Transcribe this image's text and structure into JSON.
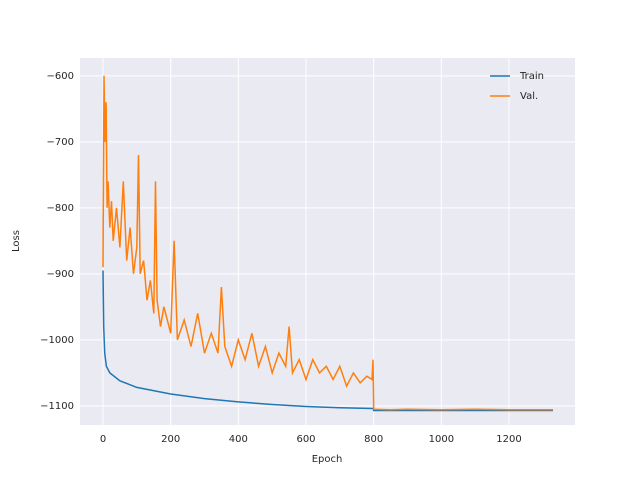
{
  "chart_data": {
    "type": "line",
    "x_label": "Epoch",
    "y_label": "Loss",
    "xlim": [
      -68,
      1395
    ],
    "ylim": [
      -1129,
      -573
    ],
    "xticks": [
      0,
      200,
      400,
      600,
      800,
      1000,
      1200
    ],
    "yticks": [
      {
        "value": -1100,
        "label": "−1100"
      },
      {
        "value": -1000,
        "label": "−1000"
      },
      {
        "value": -900,
        "label": "−900"
      },
      {
        "value": -800,
        "label": "−800"
      },
      {
        "value": -700,
        "label": "−700"
      },
      {
        "value": -600,
        "label": "−600"
      }
    ],
    "grid": true,
    "legend": "upper right",
    "series": [
      {
        "name": "Train",
        "color": "#1f77b4",
        "x": [
          0,
          2,
          5,
          10,
          20,
          50,
          100,
          200,
          300,
          400,
          500,
          600,
          700,
          799,
          800,
          900,
          1000,
          1100,
          1200,
          1330
        ],
        "values": [
          -895,
          -980,
          -1020,
          -1040,
          -1050,
          -1062,
          -1072,
          -1082,
          -1089,
          -1094,
          -1098,
          -1101,
          -1103,
          -1104,
          -1107,
          -1107,
          -1107,
          -1107,
          -1107,
          -1107
        ]
      },
      {
        "name": "Val.",
        "color": "#ff7f0e",
        "x": [
          0,
          3,
          6,
          9,
          12,
          15,
          20,
          25,
          30,
          40,
          50,
          60,
          70,
          80,
          90,
          100,
          105,
          110,
          120,
          130,
          140,
          150,
          155,
          160,
          170,
          180,
          200,
          210,
          220,
          240,
          260,
          280,
          300,
          320,
          340,
          350,
          360,
          380,
          400,
          420,
          440,
          460,
          480,
          500,
          520,
          540,
          550,
          560,
          580,
          600,
          620,
          640,
          660,
          680,
          700,
          720,
          740,
          760,
          780,
          795,
          798,
          800,
          850,
          900,
          1000,
          1100,
          1200,
          1330
        ],
        "values": [
          -890,
          -600,
          -700,
          -640,
          -800,
          -760,
          -830,
          -790,
          -850,
          -800,
          -860,
          -760,
          -880,
          -830,
          -900,
          -860,
          -720,
          -900,
          -880,
          -940,
          -910,
          -960,
          -760,
          -940,
          -980,
          -950,
          -990,
          -850,
          -1000,
          -970,
          -1010,
          -960,
          -1020,
          -990,
          -1020,
          -920,
          -1010,
          -1040,
          -1000,
          -1030,
          -990,
          -1040,
          -1010,
          -1050,
          -1020,
          -1040,
          -980,
          -1050,
          -1030,
          -1060,
          -1030,
          -1050,
          -1040,
          -1060,
          -1040,
          -1070,
          -1050,
          -1065,
          -1055,
          -1060,
          -1030,
          -1105,
          -1106,
          -1105,
          -1106,
          -1105,
          -1106,
          -1106
        ]
      }
    ]
  }
}
